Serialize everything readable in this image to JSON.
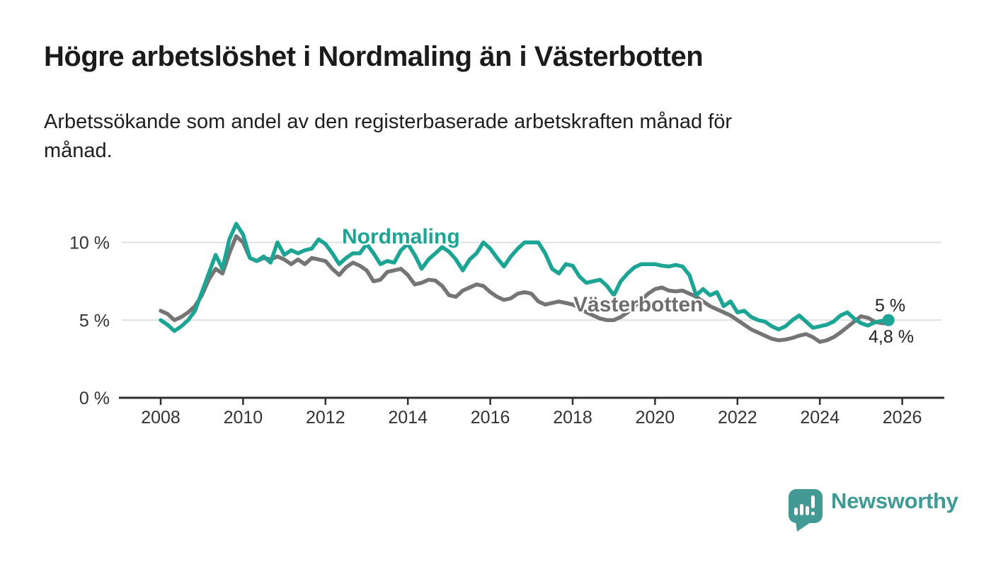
{
  "header": {
    "title": "Högre arbetslöshet i Nordmaling än i Västerbotten",
    "subtitle_line1": "Arbetssökande som andel av den registerbaserade arbetskraften månad för",
    "subtitle_line2": "månad."
  },
  "chart_data": {
    "type": "line",
    "title": "",
    "xlabel": "",
    "ylabel": "",
    "unit": "%",
    "x_start_year": 2008,
    "x_step_years": 0.166667,
    "x_end_approx": 2025.7,
    "x_ticks": [
      2008,
      2010,
      2012,
      2014,
      2016,
      2018,
      2020,
      2022,
      2024,
      2026
    ],
    "y_ticks": [
      {
        "value": 0,
        "label": "0 %"
      },
      {
        "value": 5,
        "label": "5 %"
      },
      {
        "value": 10,
        "label": "10 %"
      }
    ],
    "ylim": [
      0,
      12
    ],
    "grid": true,
    "legend_position": "inline-labels",
    "series": [
      {
        "name": "Nordmaling",
        "color": "#1ca494",
        "end_label": "5 %",
        "end_value": 5.0,
        "end_dot": true,
        "values": [
          5.0,
          4.7,
          4.3,
          4.6,
          5.0,
          5.6,
          6.8,
          8.0,
          9.2,
          8.3,
          10.2,
          11.2,
          10.5,
          9.0,
          8.8,
          9.1,
          8.7,
          10.0,
          9.2,
          9.5,
          9.3,
          9.5,
          9.6,
          10.2,
          9.9,
          9.3,
          8.6,
          9.0,
          9.3,
          9.3,
          9.9,
          9.3,
          8.6,
          8.8,
          8.7,
          9.5,
          9.9,
          9.2,
          8.3,
          8.9,
          9.3,
          9.7,
          9.4,
          8.9,
          8.2,
          8.9,
          9.3,
          10.0,
          9.6,
          9.0,
          8.45,
          9.1,
          9.6,
          10.0,
          10.0,
          10.0,
          9.3,
          8.3,
          8.0,
          8.6,
          8.5,
          7.8,
          7.4,
          7.5,
          7.6,
          7.2,
          6.6,
          7.5,
          8.0,
          8.4,
          8.6,
          8.6,
          8.6,
          8.5,
          8.45,
          8.55,
          8.45,
          7.9,
          6.6,
          7.0,
          6.6,
          6.8,
          5.9,
          6.2,
          5.5,
          5.6,
          5.2,
          5.0,
          4.9,
          4.6,
          4.4,
          4.6,
          5.0,
          5.3,
          4.9,
          4.5,
          4.6,
          4.7,
          4.9,
          5.3,
          5.5,
          5.1,
          4.8,
          4.65,
          4.85,
          4.95,
          5.0
        ]
      },
      {
        "name": "Västerbotten",
        "color": "#757575",
        "end_label": "4,8 %",
        "end_value": 4.8,
        "end_dot": false,
        "values": [
          5.6,
          5.4,
          5.0,
          5.2,
          5.5,
          5.9,
          6.6,
          7.6,
          8.3,
          8.0,
          9.3,
          10.4,
          10.0,
          9.0,
          8.8,
          9.0,
          8.9,
          9.1,
          8.9,
          8.6,
          8.9,
          8.6,
          9.0,
          8.9,
          8.8,
          8.3,
          7.9,
          8.4,
          8.7,
          8.5,
          8.2,
          7.5,
          7.6,
          8.1,
          8.2,
          8.3,
          7.9,
          7.3,
          7.4,
          7.6,
          7.55,
          7.2,
          6.6,
          6.5,
          6.9,
          7.1,
          7.3,
          7.2,
          6.8,
          6.5,
          6.3,
          6.4,
          6.7,
          6.8,
          6.7,
          6.2,
          6.0,
          6.1,
          6.2,
          6.1,
          6.0,
          5.8,
          5.5,
          5.3,
          5.1,
          5.0,
          5.0,
          5.2,
          5.5,
          5.9,
          6.3,
          6.7,
          7.0,
          7.1,
          6.9,
          6.85,
          6.9,
          6.7,
          6.5,
          6.2,
          5.9,
          5.7,
          5.5,
          5.3,
          5.0,
          4.7,
          4.4,
          4.2,
          4.0,
          3.8,
          3.7,
          3.75,
          3.85,
          4.0,
          4.1,
          3.9,
          3.6,
          3.7,
          3.9,
          4.2,
          4.55,
          4.9,
          5.25,
          5.15,
          4.9,
          4.8,
          4.8
        ]
      }
    ],
    "colors": {
      "grid": "#e0e0e0",
      "axis": "#2f2f2f",
      "tick_text": "#333333"
    }
  },
  "footer": {
    "brand": "Newsworthy",
    "brand_color": "#3f9a94"
  }
}
